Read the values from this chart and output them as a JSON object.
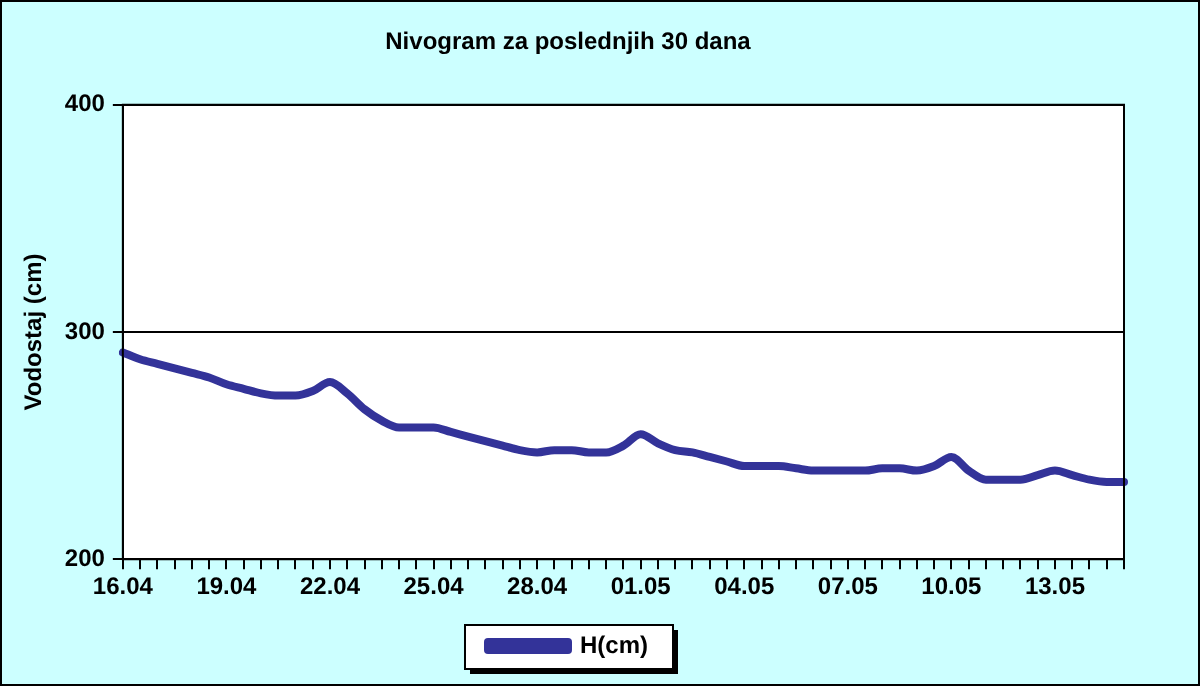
{
  "chart_data": {
    "type": "line",
    "title": "Nivogram za poslednjih 30 dana",
    "ylabel": "Vodostaj (cm)",
    "categories": [
      "16.04",
      null,
      null,
      null,
      null,
      null,
      "19.04",
      null,
      null,
      null,
      null,
      null,
      "22.04",
      null,
      null,
      null,
      null,
      null,
      "25.04",
      null,
      null,
      null,
      null,
      null,
      "28.04",
      null,
      null,
      null,
      null,
      null,
      "01.05",
      null,
      null,
      null,
      null,
      null,
      "04.05",
      null,
      null,
      null,
      null,
      null,
      "07.05",
      null,
      null,
      null,
      null,
      null,
      "10.05",
      null,
      null,
      null,
      null,
      null,
      "13.05",
      null,
      null,
      null,
      null
    ],
    "series": [
      {
        "name": "H(cm)",
        "color": "#333399",
        "values": [
          291,
          288,
          286,
          284,
          282,
          280,
          277,
          275,
          273,
          272,
          272,
          274,
          278,
          273,
          266,
          261,
          258,
          258,
          258,
          256,
          254,
          252,
          250,
          248,
          247,
          248,
          248,
          247,
          247,
          250,
          255,
          251,
          248,
          247,
          245,
          243,
          241,
          241,
          241,
          240,
          239,
          239,
          239,
          239,
          240,
          240,
          239,
          241,
          245,
          239,
          235,
          235,
          235,
          237,
          239,
          237,
          235,
          234,
          234
        ]
      }
    ],
    "ylim": [
      200,
      400
    ],
    "yticks": [
      200,
      300,
      400
    ],
    "grid": "y",
    "legend": "bottom",
    "marker": "none",
    "line_style": "solid"
  }
}
